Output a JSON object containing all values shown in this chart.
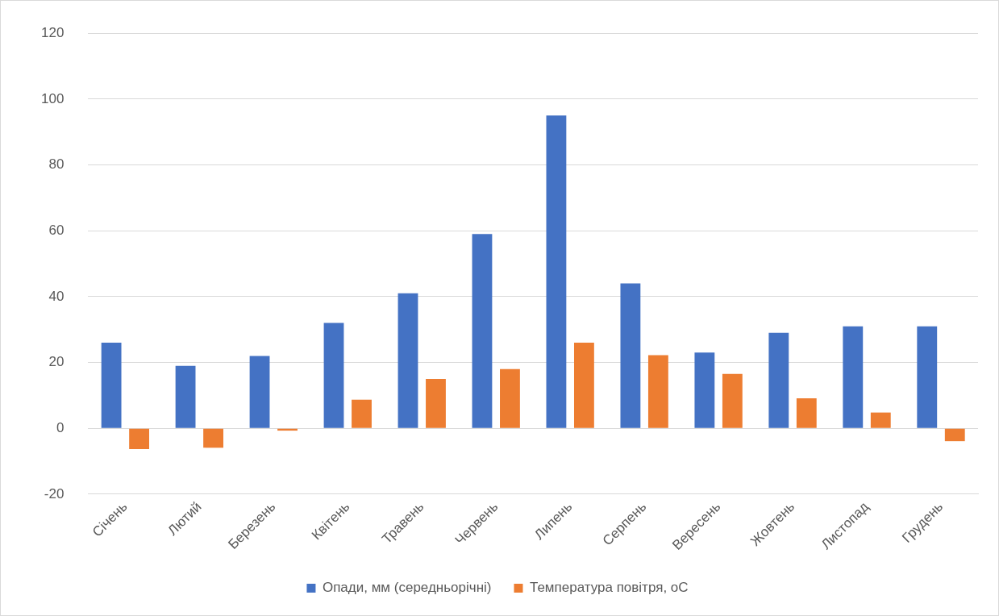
{
  "chart_data": {
    "type": "bar",
    "categories": [
      "Січень",
      "Лютий",
      "Березень",
      "Квітень",
      "Травень",
      "Червень",
      "Липень",
      "Серпень",
      "Вересень",
      "Жовтень",
      "Листопад",
      "Грудень"
    ],
    "series": [
      {
        "name": "Опади, мм (середньорічні)",
        "color": "#4472c4",
        "values": [
          26,
          19,
          22,
          32,
          41,
          59,
          95,
          44,
          23,
          29,
          31,
          31
        ]
      },
      {
        "name": "Температура повітря, оС",
        "color": "#ed7d31",
        "values": [
          -6.3,
          -5.9,
          -0.7,
          8.7,
          15,
          18,
          26,
          22.2,
          16.5,
          9.1,
          4.8,
          -3.9
        ]
      }
    ],
    "ylim": [
      -20,
      120
    ],
    "yticks": [
      -20,
      0,
      20,
      40,
      60,
      80,
      100,
      120
    ],
    "grid": "y",
    "legend": "bottom"
  }
}
